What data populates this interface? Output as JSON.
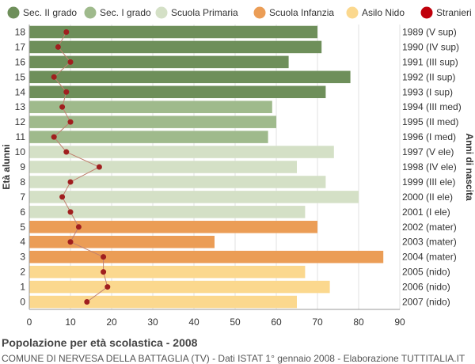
{
  "chart_data": {
    "type": "bar",
    "orientation": "horizontal",
    "title": "Popolazione per età scolastica - 2008",
    "subtitle": "COMUNE DI NERVESA DELLA BATTAGLIA (TV) - Dati ISTAT 1° gennaio 2008 - Elaborazione TUTTITALIA.IT",
    "ylabel_left": "Età alunni",
    "ylabel_right": "Anni di nascita",
    "xlim": [
      0,
      90
    ],
    "x_ticks": [
      0,
      10,
      20,
      30,
      40,
      50,
      60,
      70,
      80,
      90
    ],
    "grid": true,
    "legend_position": "top",
    "legend": [
      {
        "label": "Sec. II grado",
        "color": "#6e8f5a",
        "shape": "circle"
      },
      {
        "label": "Sec. I grado",
        "color": "#9fba8c",
        "shape": "circle"
      },
      {
        "label": "Scuola Primaria",
        "color": "#d4e0c6",
        "shape": "circle"
      },
      {
        "label": "Scuola Infanzia",
        "color": "#eb9d56",
        "shape": "circle"
      },
      {
        "label": "Asilo Nido",
        "color": "#fbd88e",
        "shape": "circle"
      },
      {
        "label": "Stranieri",
        "color": "#c0000b",
        "shape": "circle"
      }
    ],
    "rows": [
      {
        "age": "18",
        "birth": "1989 (V sup)",
        "value": 70,
        "stranieri": 9,
        "group": 0
      },
      {
        "age": "17",
        "birth": "1990 (IV sup)",
        "value": 71,
        "stranieri": 7,
        "group": 0
      },
      {
        "age": "16",
        "birth": "1991 (III sup)",
        "value": 63,
        "stranieri": 10,
        "group": 0
      },
      {
        "age": "15",
        "birth": "1992 (II sup)",
        "value": 78,
        "stranieri": 6,
        "group": 0
      },
      {
        "age": "14",
        "birth": "1993 (I sup)",
        "value": 72,
        "stranieri": 9,
        "group": 0
      },
      {
        "age": "13",
        "birth": "1994 (III med)",
        "value": 59,
        "stranieri": 8,
        "group": 1
      },
      {
        "age": "12",
        "birth": "1995 (II med)",
        "value": 60,
        "stranieri": 10,
        "group": 1
      },
      {
        "age": "11",
        "birth": "1996 (I med)",
        "value": 58,
        "stranieri": 6,
        "group": 1
      },
      {
        "age": "10",
        "birth": "1997 (V ele)",
        "value": 74,
        "stranieri": 9,
        "group": 2
      },
      {
        "age": "9",
        "birth": "1998 (IV ele)",
        "value": 65,
        "stranieri": 17,
        "group": 2
      },
      {
        "age": "8",
        "birth": "1999 (III ele)",
        "value": 72,
        "stranieri": 10,
        "group": 2
      },
      {
        "age": "7",
        "birth": "2000 (II ele)",
        "value": 80,
        "stranieri": 8,
        "group": 2
      },
      {
        "age": "6",
        "birth": "2001 (I ele)",
        "value": 67,
        "stranieri": 10,
        "group": 2
      },
      {
        "age": "5",
        "birth": "2002 (mater)",
        "value": 70,
        "stranieri": 12,
        "group": 3
      },
      {
        "age": "4",
        "birth": "2003 (mater)",
        "value": 45,
        "stranieri": 10,
        "group": 3
      },
      {
        "age": "3",
        "birth": "2004 (mater)",
        "value": 86,
        "stranieri": 18,
        "group": 3
      },
      {
        "age": "2",
        "birth": "2005 (nido)",
        "value": 67,
        "stranieri": 18,
        "group": 4
      },
      {
        "age": "1",
        "birth": "2006 (nido)",
        "value": 73,
        "stranieri": 19,
        "group": 4
      },
      {
        "age": "0",
        "birth": "2007 (nido)",
        "value": 65,
        "stranieri": 14,
        "group": 4
      }
    ],
    "stranieri_line_color": "#c08070"
  }
}
